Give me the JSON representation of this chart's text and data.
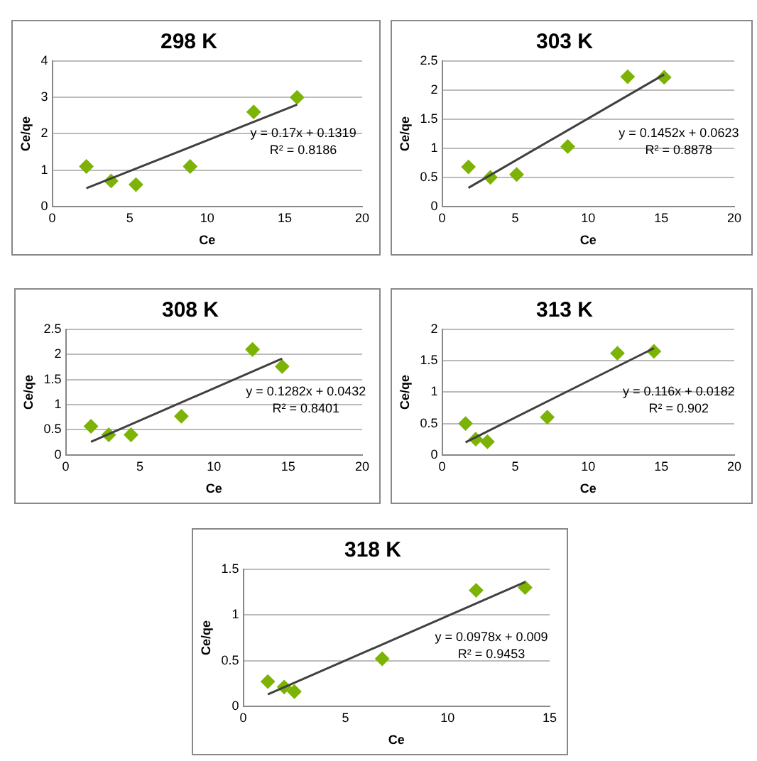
{
  "chart_data": [
    {
      "type": "scatter",
      "title": "298 K",
      "xlabel": "Ce",
      "ylabel": "Ce/qe",
      "xlim": [
        0,
        20
      ],
      "xticks": [
        0,
        5,
        10,
        15,
        20
      ],
      "ylim": [
        0,
        4
      ],
      "yticks": [
        0,
        1,
        2,
        3,
        4
      ],
      "grid": "y",
      "legend": false,
      "annotations": [
        "y = 0.17x + 0.1319",
        "R² = 0.8186"
      ],
      "series": [
        {
          "type": "scatter",
          "marker": "diamond",
          "color": "#7cb305",
          "x": [
            2.2,
            3.8,
            5.4,
            8.9,
            13,
            15.8
          ],
          "values": [
            1.1,
            0.7,
            0.6,
            1.1,
            2.6,
            3.0
          ]
        },
        {
          "type": "line",
          "marker": "none",
          "color": "#404040",
          "x": [
            2.2,
            15.8
          ],
          "values": [
            0.5,
            2.8
          ]
        }
      ]
    },
    {
      "type": "scatter",
      "title": "303 K",
      "xlabel": "Ce",
      "ylabel": "Ce/qe",
      "xlim": [
        0,
        20
      ],
      "xticks": [
        0,
        5,
        10,
        15,
        20
      ],
      "ylim": [
        0,
        2.5
      ],
      "yticks": [
        0,
        0.5,
        1,
        1.5,
        2,
        2.5
      ],
      "grid": "y",
      "legend": false,
      "annotations": [
        "y = 0.1452x + 0.0623",
        "R² = 0.8878"
      ],
      "series": [
        {
          "type": "scatter",
          "marker": "diamond",
          "color": "#7cb305",
          "x": [
            1.8,
            3.3,
            5.1,
            8.6,
            12.7,
            15.2
          ],
          "values": [
            0.68,
            0.5,
            0.55,
            1.03,
            2.23,
            2.22
          ]
        },
        {
          "type": "line",
          "marker": "none",
          "color": "#404040",
          "x": [
            1.8,
            15.2
          ],
          "values": [
            0.32,
            2.27
          ]
        }
      ]
    },
    {
      "type": "scatter",
      "title": "308 K",
      "xlabel": "Ce",
      "ylabel": "Ce/qe",
      "xlim": [
        0,
        20
      ],
      "xticks": [
        0,
        5,
        10,
        15,
        20
      ],
      "ylim": [
        0,
        2.5
      ],
      "yticks": [
        0,
        0.5,
        1,
        1.5,
        2,
        2.5
      ],
      "grid": "y",
      "legend": false,
      "annotations": [
        "y = 0.1282x + 0.0432",
        "R² = 0.8401"
      ],
      "series": [
        {
          "type": "scatter",
          "marker": "diamond",
          "color": "#7cb305",
          "x": [
            1.7,
            2.9,
            4.4,
            7.8,
            12.6,
            14.6
          ],
          "values": [
            0.57,
            0.4,
            0.4,
            0.77,
            2.1,
            1.76
          ]
        },
        {
          "type": "line",
          "marker": "none",
          "color": "#404040",
          "x": [
            1.7,
            14.6
          ],
          "values": [
            0.26,
            1.92
          ]
        }
      ]
    },
    {
      "type": "scatter",
      "title": "313 K",
      "xlabel": "Ce",
      "ylabel": "Ce/qe",
      "xlim": [
        0,
        20
      ],
      "xticks": [
        0,
        5,
        10,
        15,
        20
      ],
      "ylim": [
        0,
        2
      ],
      "yticks": [
        0,
        0.5,
        1,
        1.5,
        2
      ],
      "grid": "y",
      "legend": false,
      "annotations": [
        "y = 0.116x + 0.0182",
        "R² = 0.902"
      ],
      "series": [
        {
          "type": "scatter",
          "marker": "diamond",
          "color": "#7cb305",
          "x": [
            1.6,
            2.3,
            3.1,
            7.2,
            12,
            14.5
          ],
          "values": [
            0.5,
            0.25,
            0.21,
            0.6,
            1.62,
            1.65
          ]
        },
        {
          "type": "line",
          "marker": "none",
          "color": "#404040",
          "x": [
            1.6,
            14.5
          ],
          "values": [
            0.2,
            1.7
          ]
        }
      ]
    },
    {
      "type": "scatter",
      "title": "318 K",
      "xlabel": "Ce",
      "ylabel": "Ce/qe",
      "xlim": [
        0,
        15
      ],
      "xticks": [
        0,
        5,
        10,
        15
      ],
      "ylim": [
        0,
        1.5
      ],
      "yticks": [
        0,
        0.5,
        1,
        1.5
      ],
      "grid": "y",
      "legend": false,
      "annotations": [
        "y = 0.0978x + 0.009",
        "R² = 0.9453"
      ],
      "series": [
        {
          "type": "scatter",
          "marker": "diamond",
          "color": "#7cb305",
          "x": [
            1.2,
            2,
            2.5,
            6.8,
            11.4,
            13.8
          ],
          "values": [
            0.27,
            0.21,
            0.16,
            0.52,
            1.27,
            1.3
          ]
        },
        {
          "type": "line",
          "marker": "none",
          "color": "#404040",
          "x": [
            1.2,
            13.8
          ],
          "values": [
            0.13,
            1.36
          ]
        }
      ]
    }
  ]
}
